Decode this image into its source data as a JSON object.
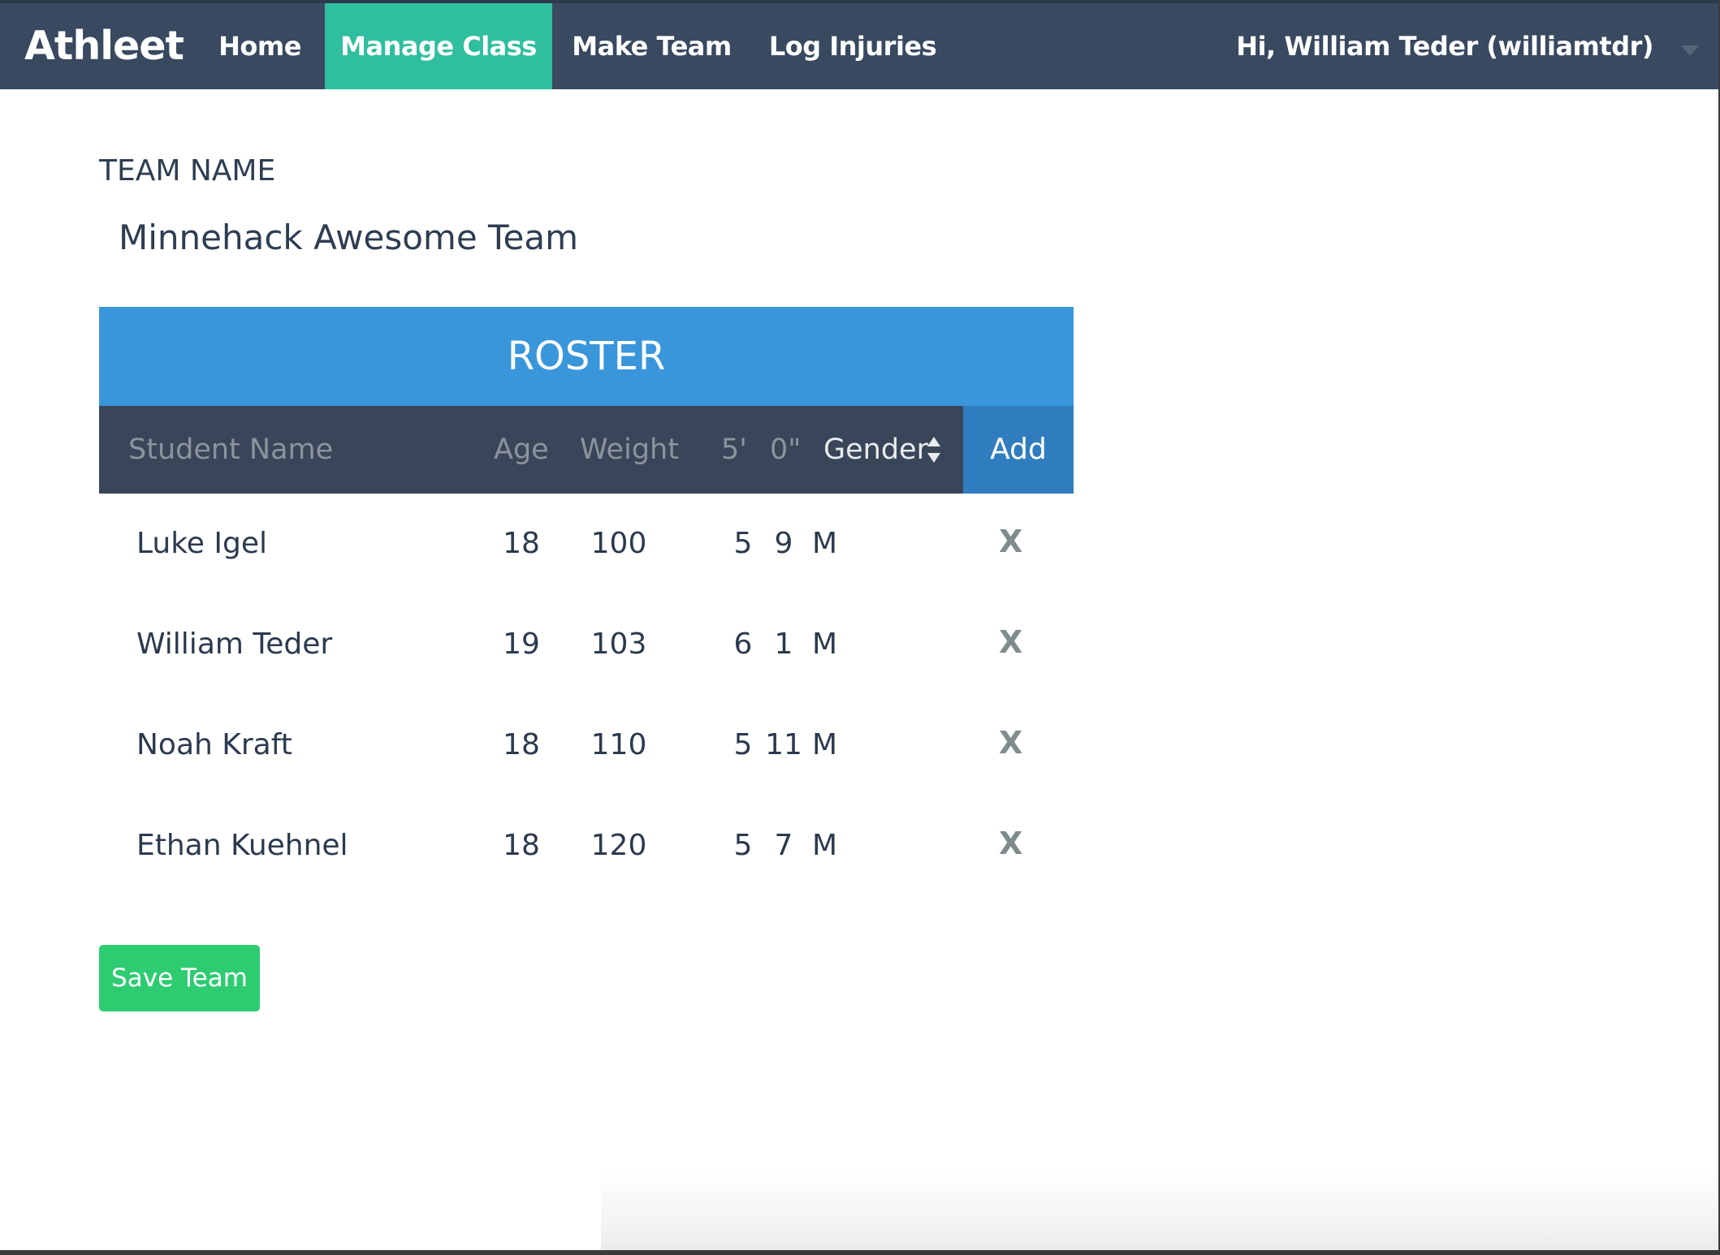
{
  "navbar": {
    "brand": "Athleet",
    "items": [
      {
        "label": "Home",
        "active": false
      },
      {
        "label": "Manage Class",
        "active": true
      },
      {
        "label": "Make Team",
        "active": false
      },
      {
        "label": "Log Injuries",
        "active": false
      }
    ],
    "user_greeting": "Hi, William Teder (williamtdr)"
  },
  "team": {
    "label": "TEAM NAME",
    "name": "Minnehack Awesome Team"
  },
  "roster": {
    "title": "ROSTER",
    "headers": {
      "student_name": "Student Name",
      "age": "Age",
      "weight": "Weight",
      "feet": "5'",
      "inches": "0\"",
      "gender": "Gender",
      "add": "Add"
    },
    "rows": [
      {
        "name": "Luke Igel",
        "age": "18",
        "weight": "100",
        "feet": "5",
        "inches": "9",
        "gender": "M",
        "remove": "X"
      },
      {
        "name": "William Teder",
        "age": "19",
        "weight": "103",
        "feet": "6",
        "inches": "1",
        "gender": "M",
        "remove": "X"
      },
      {
        "name": "Noah Kraft",
        "age": "18",
        "weight": "110",
        "feet": "5",
        "inches": "11",
        "gender": "M",
        "remove": "X"
      },
      {
        "name": "Ethan Kuehnel",
        "age": "18",
        "weight": "120",
        "feet": "5",
        "inches": "7",
        "gender": "M",
        "remove": "X"
      }
    ]
  },
  "actions": {
    "save_label": "Save Team"
  },
  "colors": {
    "navbar_bg": "#384960",
    "nav_active_bg": "#2fbe9e",
    "roster_title_bg": "#3a96db",
    "roster_head_bg": "#394659",
    "add_button_bg": "#2f7dbe",
    "save_button_bg": "#2ecc71",
    "text_dark": "#2e3d52",
    "remove_icon": "#7f8c8d"
  },
  "icons": {
    "sort": "sort-updown-icon",
    "user_dropdown": "caret-down-icon"
  }
}
